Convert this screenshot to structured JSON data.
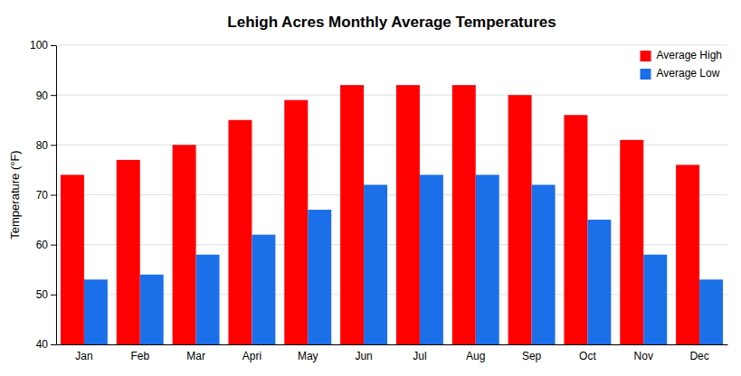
{
  "chart_data": {
    "type": "bar",
    "title": "Lehigh Acres Monthly Average Temperatures",
    "ylabel": "Temperature (°F)",
    "categories": [
      "Jan",
      "Feb",
      "Mar",
      "Apri",
      "May",
      "Jun",
      "Jul",
      "Aug",
      "Sep",
      "Oct",
      "Nov",
      "Dec"
    ],
    "series": [
      {
        "name": "Average High",
        "color": "#FF0000",
        "values": [
          74,
          77,
          80,
          85,
          89,
          92,
          92,
          92,
          90,
          86,
          81,
          76
        ]
      },
      {
        "name": "Average Low",
        "color": "#1B6FE8",
        "values": [
          53,
          54,
          58,
          62,
          67,
          72,
          74,
          74,
          72,
          65,
          58,
          53
        ]
      }
    ],
    "ylim": [
      40,
      100
    ],
    "yticks": [
      40,
      50,
      60,
      70,
      80,
      90,
      100
    ],
    "grid": true,
    "legend": "upper right"
  }
}
